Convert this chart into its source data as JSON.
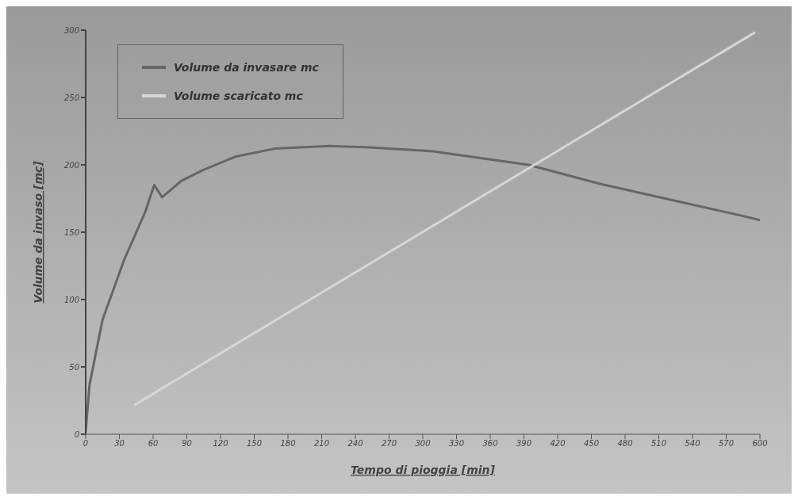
{
  "chart_data": {
    "type": "line",
    "xlabel": "Tempo di pioggia [min]",
    "ylabel": "Volume da invaso [mc]",
    "xlim": [
      0,
      600
    ],
    "xticks": [
      0,
      30,
      60,
      90,
      120,
      150,
      180,
      210,
      240,
      270,
      300,
      330,
      360,
      390,
      420,
      450,
      480,
      510,
      540,
      570,
      600
    ],
    "ylim": [
      0,
      300
    ],
    "yticks": [
      0,
      50,
      100,
      150,
      200,
      250,
      300
    ],
    "grid": false,
    "legend": "top left",
    "marker": "none",
    "line_style": "solid",
    "series": [
      {
        "name": "Volume da invasare mc",
        "color": "#666666",
        "x": [
          0,
          3.5,
          15,
          34,
          53,
          61,
          68,
          85,
          104,
          133,
          168,
          217,
          253,
          309,
          394,
          457,
          521,
          585,
          600
        ],
        "values": [
          2,
          37,
          85,
          129,
          165,
          185,
          176,
          188,
          196,
          206,
          212,
          214,
          213,
          210,
          200,
          186,
          174,
          162,
          159
        ]
      },
      {
        "name": "Volume scaricato mc",
        "color": "#d6d6d6",
        "x": [
          44,
          595
        ],
        "values": [
          22,
          298
        ]
      }
    ]
  }
}
